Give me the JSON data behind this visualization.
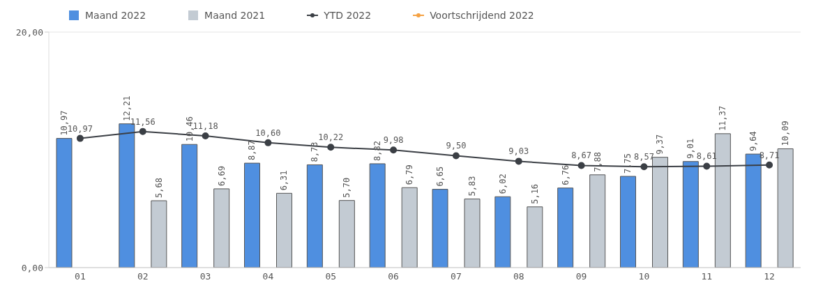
{
  "chart_data": {
    "type": "bar",
    "categories": [
      "01",
      "02",
      "03",
      "04",
      "05",
      "06",
      "07",
      "08",
      "09",
      "10",
      "11",
      "12"
    ],
    "series": [
      {
        "name": "Maand 2022",
        "color": "#4f8fe0",
        "values": [
          10.97,
          12.21,
          10.46,
          8.87,
          8.73,
          8.82,
          6.65,
          6.02,
          6.76,
          7.75,
          9.01,
          9.64
        ],
        "value_labels": [
          "10,97",
          "12,21",
          "10,46",
          "8,87",
          "8,73",
          "8,82",
          "6,65",
          "6,02",
          "6,76",
          "7,75",
          "9,01",
          "9,64"
        ]
      },
      {
        "name": "Maand 2021",
        "color": "#c3cbd3",
        "values": [
          null,
          5.68,
          6.69,
          6.31,
          5.7,
          6.79,
          5.83,
          5.16,
          7.88,
          9.37,
          11.37,
          10.09
        ],
        "value_labels": [
          null,
          "5,68",
          "6,69",
          "6,31",
          "5,70",
          "6,79",
          "5,83",
          "5,16",
          "7,88",
          "9,37",
          "11,37",
          "10,09"
        ]
      },
      {
        "name": "YTD 2022",
        "type": "line",
        "color": "#3b3f45",
        "values": [
          10.97,
          11.56,
          11.18,
          10.6,
          10.22,
          9.98,
          9.5,
          9.03,
          8.67,
          8.57,
          8.61,
          8.71
        ],
        "value_labels": [
          "10,97",
          "11,56",
          "11,18",
          "10,60",
          "10,22",
          "9,98",
          "9,50",
          "9,03",
          "8,67",
          "8,57",
          "8,61",
          "8,71"
        ]
      },
      {
        "name": "Voortschrijdend 2022",
        "type": "line",
        "color": "#f5a142",
        "values": [
          null,
          null,
          null,
          null,
          null,
          null,
          null,
          null,
          null,
          null,
          null,
          null
        ]
      }
    ],
    "ylim": [
      0,
      20
    ],
    "yticks": [
      {
        "value": 0,
        "label": "0,00"
      },
      {
        "value": 20,
        "label": "20,00"
      }
    ],
    "grid": "y",
    "legend": "top left",
    "marker": "circle"
  }
}
